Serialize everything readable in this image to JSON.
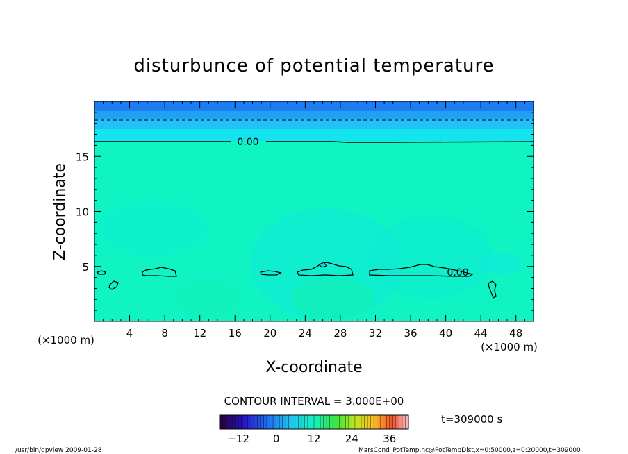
{
  "chart_data": {
    "type": "heatmap",
    "title": "disturbunce of potential temperature",
    "xlabel": "X-coordinate",
    "ylabel": "Z-coordinate",
    "x_unit_left": "(×1000 m)",
    "x_unit_right": "(×1000 m)",
    "xlim": [
      0,
      50
    ],
    "ylim": [
      0,
      20
    ],
    "x_ticks": [
      4,
      8,
      12,
      16,
      20,
      24,
      28,
      32,
      36,
      40,
      44,
      48
    ],
    "y_ticks": [
      5,
      10,
      15
    ],
    "contour_label": "0.00",
    "contour_interval": "CONTOUR INTERVAL = 3.000E+00",
    "time_label": "t=309000 s",
    "colorbar": {
      "min": -18,
      "max": 42,
      "ticks": [
        -12,
        0,
        12,
        24,
        36
      ]
    },
    "background_value_approx": 0,
    "upper_layer_colors": [
      "#1e7cf2",
      "#22a0f6",
      "#20c2f8",
      "#14e4f0"
    ],
    "field_color": "#10f4c4",
    "footer_left": "/usr/bin/gpview   2009-01-28",
    "footer_right": "MarsCond_PotTemp.nc@PotTempDist,x=0:50000,z=0:20000,t=309000"
  }
}
